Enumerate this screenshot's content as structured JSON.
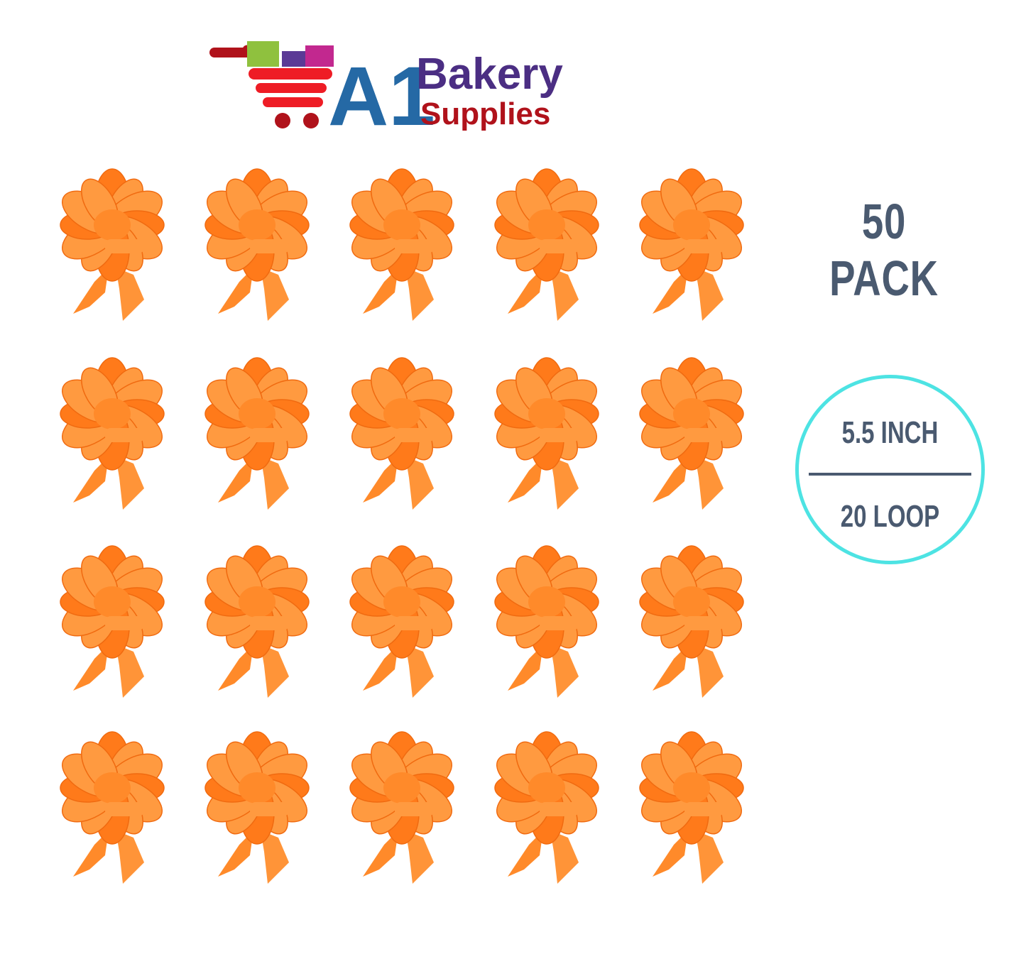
{
  "logo": {
    "text_a1": "A1",
    "text_bakery": "Bakery",
    "text_supplies": "Supplies",
    "colors": {
      "cart": "#ee1c25",
      "a1": "#2569a5",
      "bakery": "#4b2e83",
      "supplies": "#b0121b"
    }
  },
  "product": {
    "item": "pull bow",
    "color": "#ff8a2a",
    "count_shown": 20
  },
  "labels": {
    "pack": "50 PACK",
    "size": "5.5 INCH",
    "loops": "20 LOOP"
  },
  "colors": {
    "text": "#4a5a70",
    "badge_border": "#4de3e3"
  }
}
